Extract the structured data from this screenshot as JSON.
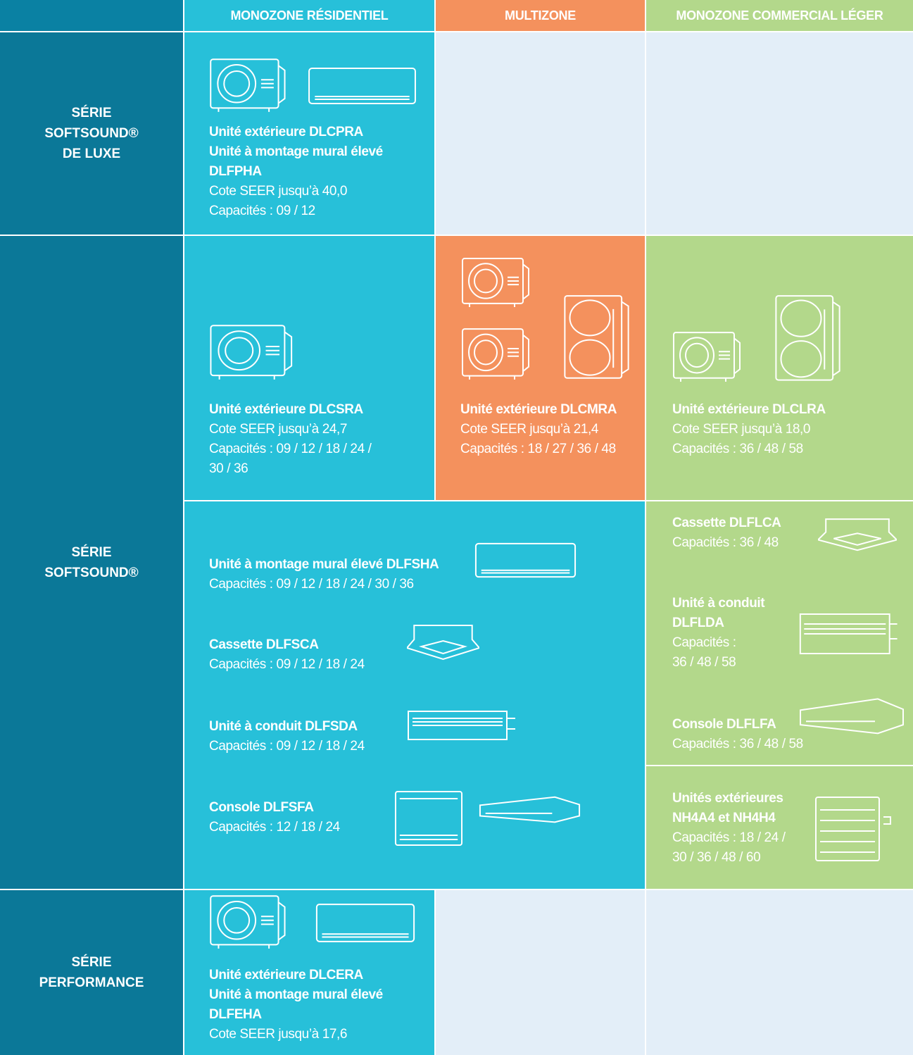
{
  "header": {
    "columns": [
      "MONOZONE RÉSIDENTIEL",
      "MULTIZONE",
      "MONOZONE COMMERCIAL LÉGER"
    ]
  },
  "rows": [
    {
      "label": [
        "SÉRIE",
        "SOFTSOUND®",
        "DE LUXE"
      ]
    },
    {
      "label": [
        "SÉRIE",
        "SOFTSOUND®"
      ]
    },
    {
      "label": [
        "SÉRIE",
        "PERFORMANCE"
      ]
    }
  ],
  "products": [
    {
      "name": [
        "Unité extérieure DLCPRA",
        "Unité à montage mural élevé",
        "DLFPHA"
      ],
      "details": [
        "Cote SEER jusqu’à 40,0",
        "Capacités : 09 / 12"
      ]
    },
    {
      "name": [
        "Unité extérieure DLCSRA"
      ],
      "details": [
        "Cote SEER jusqu’à 24,7",
        "Capacités : 09 / 12 / 18 / 24 /",
        "30 / 36"
      ]
    },
    {
      "name": [
        "Unité extérieure DLCMRA"
      ],
      "details": [
        "Cote SEER jusqu’à 21,4",
        "Capacités : 18 / 27 / 36 / 48"
      ]
    },
    {
      "name": [
        "Unité extérieure DLCLRA"
      ],
      "details": [
        "Cote SEER jusqu’à 18,0",
        "Capacités : 36 / 48 / 58"
      ]
    },
    {
      "name": [
        "Unité à montage mural élevé DLFSHA"
      ],
      "details": [
        "Capacités : 09 / 12 / 18 / 24 / 30 / 36"
      ]
    },
    {
      "name": [
        "Cassette DLFSCA"
      ],
      "details": [
        "Capacités : 09 / 12 / 18 / 24"
      ]
    },
    {
      "name": [
        "Unité à conduit DLFSDA"
      ],
      "details": [
        "Capacités : 09 / 12 / 18 / 24"
      ]
    },
    {
      "name": [
        "Console DLFSFA"
      ],
      "details": [
        "Capacités : 12 / 18 / 24"
      ]
    },
    {
      "name": [
        "Cassette DLFLCA"
      ],
      "details": [
        "Capacités : 36 / 48"
      ]
    },
    {
      "name": [
        "Unité à conduit",
        "DLFLDA"
      ],
      "details": [
        "Capacités :",
        "36 / 48 / 58"
      ]
    },
    {
      "name": [
        "Console DLFLFA"
      ],
      "details": [
        "Capacités : 36 / 48 / 58"
      ]
    },
    {
      "name": [
        "Unités extérieures",
        "NH4A4 et NH4H4"
      ],
      "details": [
        "Capacités : 18 / 24 /",
        "30 / 36 / 48 / 60"
      ]
    },
    {
      "name": [
        "Unité extérieure DLCERA",
        "Unité à montage mural élevé",
        "DLFEHA"
      ],
      "details": [
        "Cote SEER jusqu’à 17,6"
      ]
    }
  ]
}
